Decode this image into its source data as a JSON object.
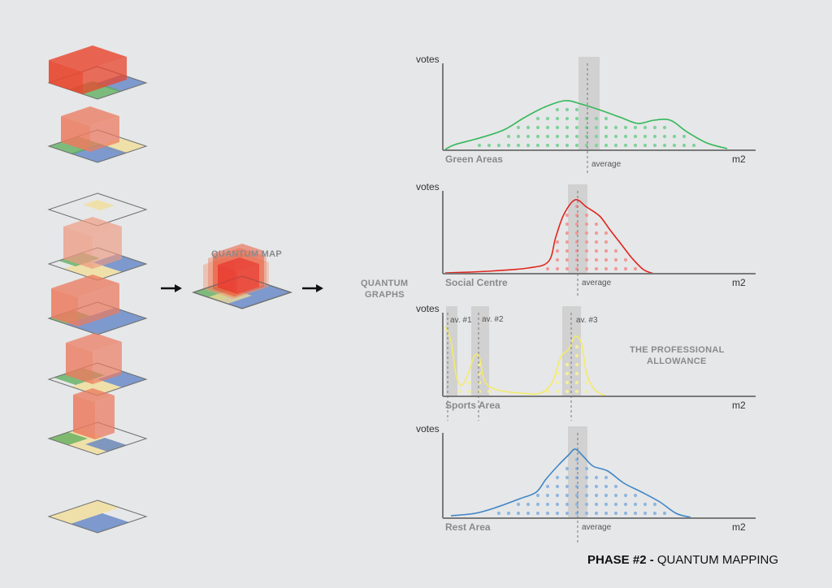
{
  "diagram": {
    "quantum_map_label": "QUANTUM MAP",
    "quantum_graphs_label": [
      "QUANTUM",
      "GRAPHS"
    ],
    "allowance_label": [
      "THE PROFESSIONAL",
      "ALLOWANCE"
    ],
    "title_bold": "PHASE #2 - ",
    "title_regular": "QUANTUM MAPPING",
    "colors": {
      "red": "#e8452c",
      "blue": "#5a7fc4",
      "green": "#5aac5a",
      "yellow": "#f2dd95",
      "axis": "#7a7a7a",
      "band": "#c9c9c9"
    }
  },
  "chart_data": [
    {
      "type": "area",
      "name": "Green Areas",
      "ylabel": "votes",
      "xlabel": "m2",
      "marker_label": "average",
      "color": "#33b85a",
      "dot_color": "#7fd29a"
    },
    {
      "type": "area",
      "name": "Social Centre",
      "ylabel": "votes",
      "xlabel": "m2",
      "marker_label": "average",
      "color": "#e0251e",
      "dot_color": "#f09a98"
    },
    {
      "type": "area",
      "name": "Sports Area",
      "ylabel": "votes",
      "xlabel": "m2",
      "marker_labels": [
        "av. #1",
        "av. #2",
        "av. #3"
      ],
      "color": "#f4ea6a",
      "dot_color": "#f5ee9c"
    },
    {
      "type": "area",
      "name": "Rest Area",
      "ylabel": "votes",
      "xlabel": "m2",
      "marker_label": "average",
      "color": "#3f86c6",
      "dot_color": "#8fb6e0"
    }
  ]
}
